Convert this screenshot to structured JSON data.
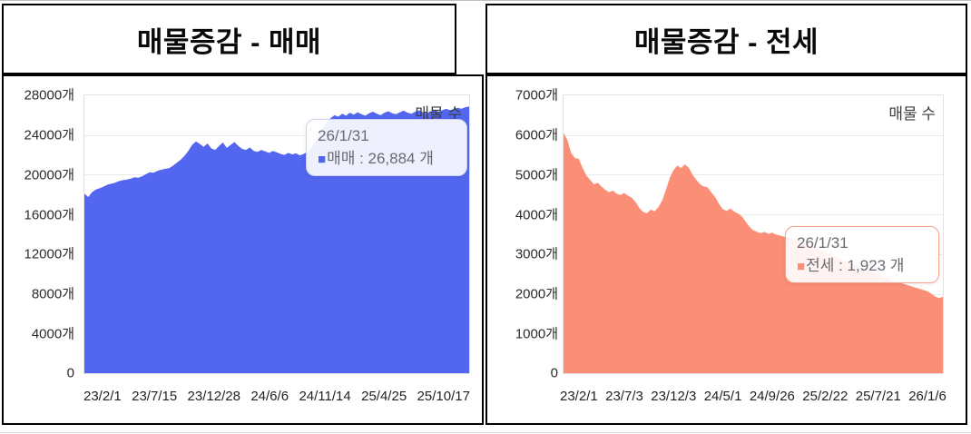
{
  "panels": [
    {
      "title": "매물증감 - 매매",
      "legend_label": "매물 수",
      "y_ticks": [
        "28000개",
        "24000개",
        "20000개",
        "16000개",
        "12000개",
        "8000개",
        "4000개",
        "0"
      ],
      "x_ticks": [
        "23/2/1",
        "23/7/15",
        "23/12/28",
        "24/6/6",
        "24/11/14",
        "25/4/25",
        "25/10/17"
      ],
      "tooltip": {
        "date": "26/1/31",
        "swatch": "■",
        "text": "매매 : 26,884 개"
      },
      "accent_color": "#5266ef"
    },
    {
      "title": "매물증감 - 전세",
      "legend_label": "매물 수",
      "y_ticks": [
        "7000개",
        "6000개",
        "5000개",
        "4000개",
        "3000개",
        "2000개",
        "1000개",
        "0"
      ],
      "x_ticks": [
        "23/2/1",
        "23/7/3",
        "23/12/3",
        "24/5/1",
        "24/9/26",
        "25/2/22",
        "25/7/21",
        "26/1/6"
      ],
      "tooltip": {
        "date": "26/1/31",
        "swatch": "■",
        "text": "전세 : 1,923 개"
      },
      "accent_color": "#fb8e76"
    }
  ],
  "chart_data": [
    {
      "type": "area",
      "title": "매물증감 - 매매",
      "legend": "매물 수",
      "color": "#5266ef",
      "ylim": [
        0,
        28000
      ],
      "y_tick_step": 4000,
      "y_unit": "개",
      "x_tick_labels": [
        "23/2/1",
        "23/7/15",
        "23/12/28",
        "24/6/6",
        "24/11/14",
        "25/4/25",
        "25/10/17"
      ],
      "x_start": "23/2/1",
      "x_end": "26/1/31",
      "grid": true,
      "last_point": {
        "date": "26/1/31",
        "value": 26884
      },
      "series": [
        {
          "name": "매매",
          "values": [
            18100,
            17750,
            18250,
            18500,
            18650,
            18800,
            19000,
            19100,
            19200,
            19350,
            19450,
            19500,
            19600,
            19750,
            19700,
            19850,
            20050,
            20250,
            20200,
            20400,
            20500,
            20600,
            20650,
            20900,
            21200,
            21500,
            21900,
            22400,
            23000,
            23350,
            23100,
            22800,
            23150,
            22650,
            22500,
            22900,
            23250,
            22700,
            23000,
            23300,
            22900,
            22600,
            22500,
            22750,
            22400,
            22300,
            22500,
            22350,
            22200,
            22400,
            22250,
            22100,
            22000,
            22200,
            22050,
            22150,
            21950,
            22100,
            22300,
            22700,
            23300,
            24000,
            24700,
            25300,
            25700,
            26000,
            25850,
            26150,
            25950,
            26250,
            26050,
            26300,
            26100,
            25950,
            26200,
            26350,
            26150,
            26000,
            26250,
            26400,
            26200,
            26100,
            26300,
            26450,
            26250,
            26150,
            26350,
            26500,
            26300,
            26200,
            26400,
            26550,
            26350,
            26500,
            26650,
            26500,
            26600,
            26750,
            26650,
            26800,
            26884
          ]
        }
      ]
    },
    {
      "type": "area",
      "title": "매물증감 - 전세",
      "legend": "매물 수",
      "color": "#fb8e76",
      "ylim": [
        0,
        7000
      ],
      "y_tick_step": 1000,
      "y_unit": "개",
      "x_tick_labels": [
        "23/2/1",
        "23/7/3",
        "23/12/3",
        "24/5/1",
        "24/9/26",
        "25/2/22",
        "25/7/21",
        "26/1/6"
      ],
      "x_start": "23/2/1",
      "x_end": "26/1/31",
      "grid": true,
      "last_point": {
        "date": "26/1/31",
        "value": 1923
      },
      "series": [
        {
          "name": "전세",
          "values": [
            6050,
            5880,
            5550,
            5420,
            5400,
            5180,
            4980,
            4870,
            4760,
            4800,
            4700,
            4620,
            4560,
            4600,
            4520,
            4490,
            4540,
            4470,
            4420,
            4310,
            4160,
            4060,
            4030,
            4120,
            4080,
            4180,
            4350,
            4620,
            4920,
            5120,
            5230,
            5170,
            5260,
            5180,
            5000,
            4870,
            4760,
            4700,
            4680,
            4550,
            4430,
            4260,
            4130,
            4090,
            4150,
            4070,
            4020,
            3950,
            3820,
            3690,
            3600,
            3560,
            3530,
            3560,
            3510,
            3540,
            3490,
            3470,
            3440,
            3420,
            3390,
            3360,
            3320,
            3280,
            3240,
            3200,
            3160,
            3120,
            3080,
            3040,
            3000,
            2960,
            2920,
            2880,
            2840,
            2800,
            2760,
            2720,
            2680,
            2640,
            2600,
            2560,
            2520,
            2480,
            2440,
            2400,
            2360,
            2330,
            2300,
            2270,
            2240,
            2210,
            2180,
            2150,
            2120,
            2090,
            2060,
            2000,
            1930,
            1890,
            1923
          ]
        }
      ]
    }
  ]
}
